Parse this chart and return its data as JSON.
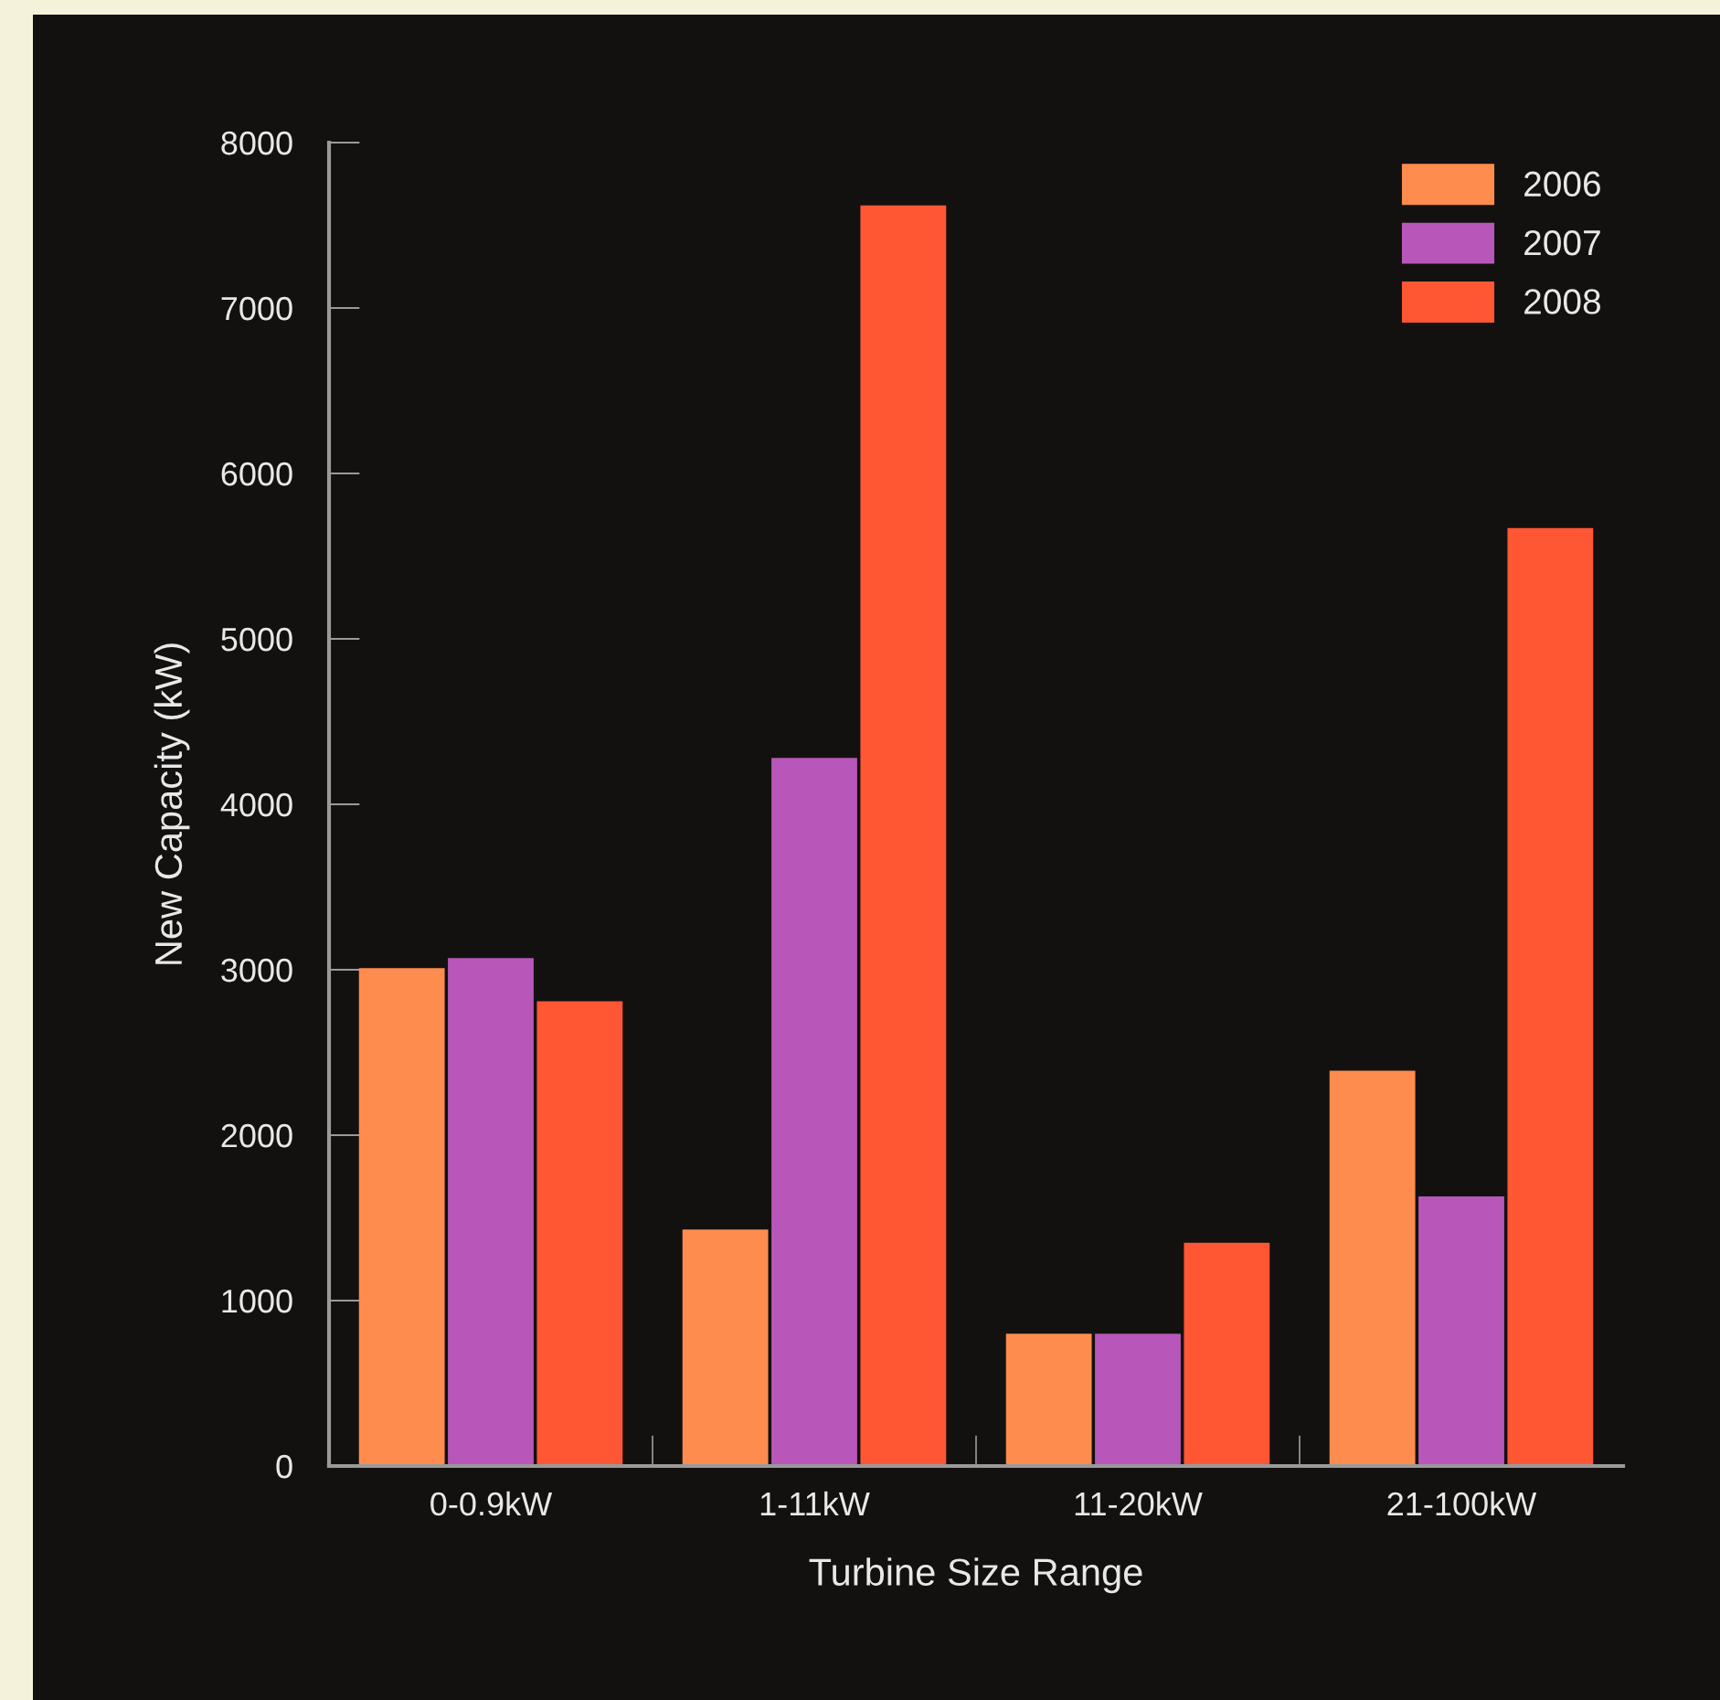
{
  "chart_data": {
    "type": "bar",
    "xlabel": "Turbine Size Range",
    "ylabel": "New Capacity (kW)",
    "categories": [
      "0-0.9kW",
      "1-11kW",
      "11-20kW",
      "21-100kW"
    ],
    "series": [
      {
        "name": "2006",
        "color": "#ff8c4f",
        "values": [
          3010,
          1430,
          800,
          2390
        ]
      },
      {
        "name": "2007",
        "color": "#b857b9",
        "values": [
          3070,
          4280,
          800,
          1630
        ]
      },
      {
        "name": "2008",
        "color": "#ff5733",
        "values": [
          2810,
          7620,
          1350,
          5670
        ]
      }
    ],
    "ylim": [
      0,
      8000
    ],
    "yticks": [
      0,
      1000,
      2000,
      3000,
      4000,
      5000,
      6000,
      7000,
      8000
    ],
    "grid": false,
    "legend": "top right"
  }
}
